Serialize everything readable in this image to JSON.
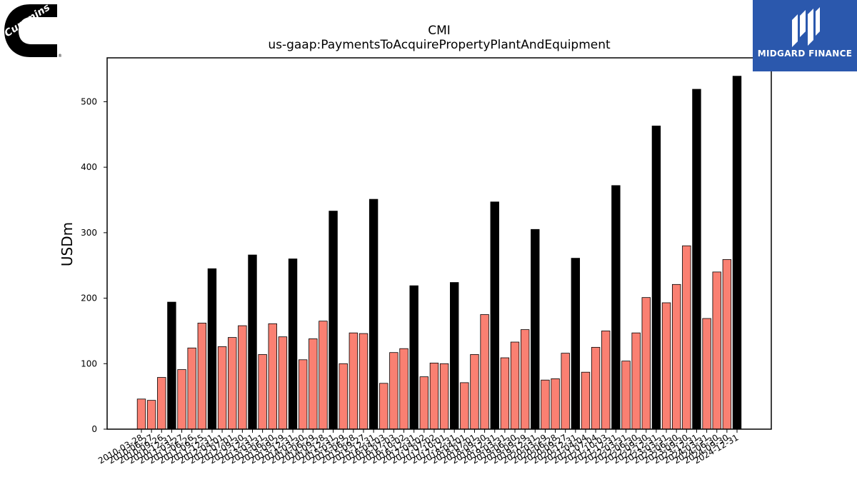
{
  "logos": {
    "left_text": "Cummins",
    "right_text": "MIDGARD FINANCE"
  },
  "colors": {
    "bar_default": "#fa8072",
    "bar_highlight": "#000000",
    "bar_edge": "#000000",
    "logo_right_bg": "#2b58ad"
  },
  "chart_data": {
    "type": "bar",
    "title": "CMI",
    "subtitle": "us-gaap:PaymentsToAcquirePropertyPlantAndEquipment",
    "xlabel": "",
    "ylabel": "USDm",
    "ylim": [
      0,
      567
    ],
    "yticks": [
      0,
      100,
      200,
      300,
      400,
      500
    ],
    "grid": false,
    "categories": [
      "2010-03-28",
      "2010-06-27",
      "2010-09-26",
      "2010-12-31",
      "2011-03-27",
      "2011-06-26",
      "2011-09-25",
      "2011-12-31",
      "2012-04-01",
      "2012-07-01",
      "2012-09-30",
      "2012-12-31",
      "2013-03-31",
      "2013-06-30",
      "2013-09-29",
      "2013-12-31",
      "2014-03-30",
      "2014-06-29",
      "2014-09-28",
      "2014-12-31",
      "2015-03-29",
      "2015-06-28",
      "2015-09-27",
      "2015-12-31",
      "2016-04-03",
      "2016-07-03",
      "2016-10-02",
      "2016-12-31",
      "2017-04-02",
      "2017-07-02",
      "2017-10-01",
      "2017-12-31",
      "2018-04-01",
      "2018-07-01",
      "2018-09-30",
      "2018-12-31",
      "2019-03-31",
      "2019-06-30",
      "2019-09-29",
      "2019-12-31",
      "2020-03-29",
      "2020-06-28",
      "2020-09-27",
      "2020-12-31",
      "2021-04-04",
      "2021-07-04",
      "2021-10-03",
      "2021-12-31",
      "2022-03-31",
      "2022-06-30",
      "2022-09-30",
      "2022-12-31",
      "2023-03-31",
      "2023-06-30",
      "2023-09-30",
      "2023-12-31",
      "2024-03-31",
      "2024-06-30",
      "2024-09-30",
      "2024-12-31"
    ],
    "values": [
      46,
      44,
      79,
      194,
      91,
      124,
      162,
      245,
      126,
      140,
      158,
      266,
      114,
      161,
      141,
      260,
      106,
      138,
      165,
      333,
      100,
      147,
      146,
      351,
      70,
      117,
      123,
      219,
      80,
      101,
      100,
      224,
      71,
      114,
      175,
      347,
      109,
      133,
      152,
      305,
      75,
      77,
      116,
      261,
      87,
      125,
      150,
      372,
      104,
      147,
      201,
      463,
      193,
      221,
      280,
      519,
      169,
      240,
      259,
      539
    ],
    "highlight_every": 4,
    "highlight_offset": 3
  }
}
